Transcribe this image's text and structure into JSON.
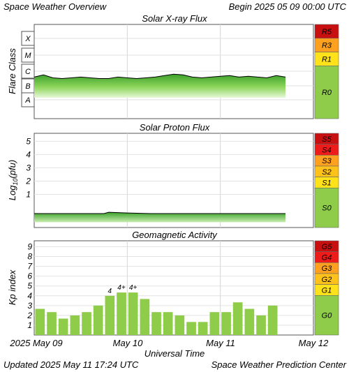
{
  "header": {
    "title": "Space Weather Overview",
    "begin": "Begin 2025 05 09 00:00 UTC"
  },
  "footer": {
    "updated": "Updated 2025 May 11 17:24 UTC",
    "center": "Space Weather Prediction Center",
    "xaxis_title": "Universal Time",
    "date_labels": [
      "2025 May 09",
      "May 10",
      "May 11",
      "May 12"
    ]
  },
  "colors": {
    "green": "#8fcc4a",
    "yellow": "#ffe21a",
    "orange": "#ffa11e",
    "red_orange": "#ff5a1a",
    "red": "#ee1b1b",
    "dark_red": "#c81010"
  },
  "chart_data": [
    {
      "type": "area",
      "title": "Solar X-ray Flux",
      "ylabel": "Flare Class",
      "y_tick_labels": [
        "A",
        "B",
        "C",
        "M",
        "X"
      ],
      "xlim_days": [
        0,
        3
      ],
      "grid": true,
      "baseline_class_level": "B",
      "series_description": "flux level (class units, A=1 ... X=5)",
      "x_days": [
        0.0,
        0.1,
        0.2,
        0.3,
        0.4,
        0.5,
        0.6,
        0.7,
        0.8,
        0.9,
        1.0,
        1.1,
        1.2,
        1.3,
        1.4,
        1.5,
        1.6,
        1.7,
        1.8,
        1.9,
        2.0,
        2.1,
        2.2,
        2.3,
        2.4,
        2.5,
        2.6,
        2.7
      ],
      "values": [
        2.6,
        2.75,
        2.55,
        2.5,
        2.55,
        2.6,
        2.55,
        2.5,
        2.5,
        2.6,
        2.55,
        2.5,
        2.55,
        2.6,
        2.7,
        2.8,
        2.75,
        2.6,
        2.55,
        2.6,
        2.65,
        2.7,
        2.6,
        2.65,
        2.6,
        2.55,
        2.7,
        2.6
      ],
      "scale": [
        {
          "label": "R5",
          "color": "#c81010"
        },
        {
          "label": "R3",
          "color": "#ffa11e"
        },
        {
          "label": "R1",
          "color": "#ffe21a"
        },
        {
          "label": "R0",
          "color": "#8fcc4a"
        }
      ]
    },
    {
      "type": "area",
      "title": "Solar Proton Flux",
      "ylabel": "Log10(pfu)",
      "y_ticks": [
        1,
        2,
        3,
        4,
        5
      ],
      "ylim": [
        -1.5,
        5.6
      ],
      "xlim_days": [
        0,
        3
      ],
      "grid": true,
      "x_days": [
        0.0,
        0.25,
        0.5,
        0.75,
        0.8,
        1.0,
        1.25,
        1.5,
        1.75,
        2.0,
        2.25,
        2.5,
        2.7
      ],
      "values": [
        -0.45,
        -0.45,
        -0.45,
        -0.45,
        -0.35,
        -0.4,
        -0.45,
        -0.45,
        -0.45,
        -0.45,
        -0.45,
        -0.45,
        -0.45
      ],
      "scale": [
        {
          "label": "S5",
          "color": "#c81010"
        },
        {
          "label": "S4",
          "color": "#ee1b1b"
        },
        {
          "label": "S3",
          "color": "#ffa11e"
        },
        {
          "label": "S2",
          "color": "#ffc21a"
        },
        {
          "label": "S1",
          "color": "#ffe21a"
        },
        {
          "label": "S0",
          "color": "#8fcc4a"
        }
      ]
    },
    {
      "type": "bar",
      "title": "Geomagnetic Activity",
      "ylabel": "Kp index",
      "y_ticks": [
        1,
        2,
        3,
        4,
        5,
        6,
        7,
        8,
        9
      ],
      "ylim": [
        0,
        9.6
      ],
      "xlim_days": [
        0,
        3
      ],
      "grid": true,
      "bar_interval_hours": 3,
      "values": [
        2.67,
        2.33,
        1.67,
        2.0,
        2.33,
        3.0,
        4.0,
        4.33,
        4.33,
        3.67,
        2.33,
        2.33,
        2.0,
        1.33,
        1.33,
        2.33,
        2.33,
        3.33,
        2.67,
        2.0,
        3.0
      ],
      "bar_labels": {
        "6": "4",
        "7": "4+",
        "8": "4+"
      },
      "scale": [
        {
          "label": "G5",
          "color": "#c81010"
        },
        {
          "label": "G4",
          "color": "#ee1b1b"
        },
        {
          "label": "G3",
          "color": "#ffa11e"
        },
        {
          "label": "G2",
          "color": "#ffc21a"
        },
        {
          "label": "G1",
          "color": "#ffe21a"
        },
        {
          "label": "G0",
          "color": "#8fcc4a"
        }
      ]
    }
  ]
}
